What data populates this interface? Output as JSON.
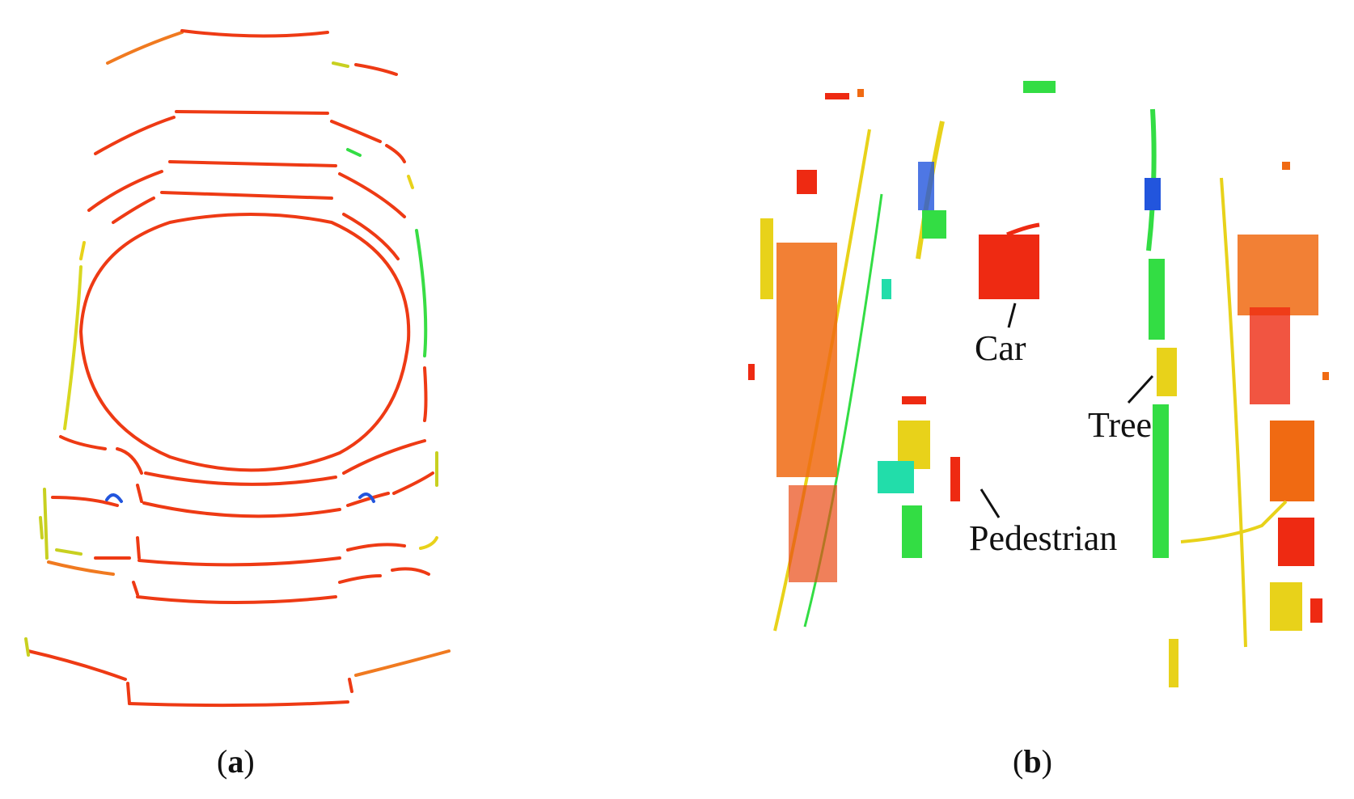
{
  "panels": [
    {
      "id": "a",
      "caption_open": "(",
      "caption_letter": "a",
      "caption_close": ")"
    },
    {
      "id": "b",
      "caption_open": "(",
      "caption_letter": "b",
      "caption_close": ")"
    }
  ],
  "annotations": {
    "car": "Car",
    "tree": "Tree",
    "pedestrian": "Pedestrian"
  },
  "colors": {
    "red": "#ee2a12",
    "orange": "#f06a12",
    "yellow": "#e8d21a",
    "green": "#33dd44",
    "cyan": "#22ddaa",
    "blue": "#2255dd",
    "ink": "#111111"
  }
}
